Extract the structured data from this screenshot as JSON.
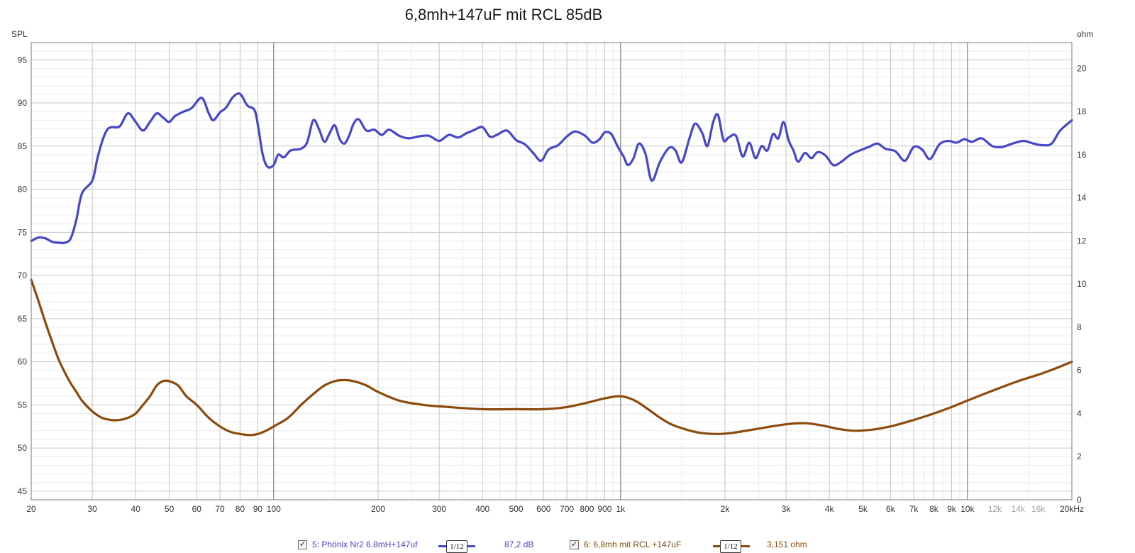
{
  "chart_data": {
    "type": "line",
    "title": "6,8mh+147uF mit RCL 85dB",
    "y_left_label": "SPL",
    "y_right_label": "ohm",
    "x_scale": "log",
    "xlim": [
      20,
      20000
    ],
    "ylim_left": [
      44,
      97
    ],
    "ylim_right": [
      0,
      21.2
    ],
    "grid": true,
    "x_ticks": [
      {
        "v": 20,
        "label": "20"
      },
      {
        "v": 30,
        "label": "30"
      },
      {
        "v": 40,
        "label": "40"
      },
      {
        "v": 50,
        "label": "50"
      },
      {
        "v": 60,
        "label": "60"
      },
      {
        "v": 70,
        "label": "70"
      },
      {
        "v": 80,
        "label": "80"
      },
      {
        "v": 90,
        "label": "90"
      },
      {
        "v": 100,
        "label": "100"
      },
      {
        "v": 200,
        "label": "200"
      },
      {
        "v": 300,
        "label": "300"
      },
      {
        "v": 400,
        "label": "400"
      },
      {
        "v": 500,
        "label": "500"
      },
      {
        "v": 600,
        "label": "600"
      },
      {
        "v": 700,
        "label": "700"
      },
      {
        "v": 800,
        "label": "800"
      },
      {
        "v": 900,
        "label": "900"
      },
      {
        "v": 1000,
        "label": "1k"
      },
      {
        "v": 2000,
        "label": "2k"
      },
      {
        "v": 3000,
        "label": "3k"
      },
      {
        "v": 4000,
        "label": "4k"
      },
      {
        "v": 5000,
        "label": "5k"
      },
      {
        "v": 6000,
        "label": "6k"
      },
      {
        "v": 7000,
        "label": "7k"
      },
      {
        "v": 8000,
        "label": "8k"
      },
      {
        "v": 9000,
        "label": "9k"
      },
      {
        "v": 10000,
        "label": "10k"
      },
      {
        "v": 12000,
        "label": "12k"
      },
      {
        "v": 14000,
        "label": "14k"
      },
      {
        "v": 16000,
        "label": "16k"
      },
      {
        "v": 20000,
        "label": "20kHz"
      }
    ],
    "y_left_ticks": [
      45,
      50,
      55,
      60,
      65,
      70,
      75,
      80,
      85,
      90,
      95
    ],
    "y_right_ticks": [
      0,
      2,
      4,
      6,
      8,
      10,
      12,
      14,
      16,
      18,
      20
    ],
    "series": [
      {
        "name": "5: Phönix Nr2 6.8mH+147uf",
        "axis": "left",
        "color": "#4646c8",
        "smoothing": "1/12",
        "readout": "87,2 dB",
        "points": [
          [
            20,
            74.0
          ],
          [
            21,
            74.4
          ],
          [
            22,
            74.3
          ],
          [
            23,
            73.9
          ],
          [
            24,
            73.8
          ],
          [
            25,
            73.8
          ],
          [
            26,
            74.3
          ],
          [
            27,
            76.5
          ],
          [
            28,
            79.5
          ],
          [
            30,
            81.0
          ],
          [
            31,
            83.5
          ],
          [
            32,
            85.5
          ],
          [
            33,
            86.8
          ],
          [
            34,
            87.2
          ],
          [
            36,
            87.3
          ],
          [
            38,
            88.8
          ],
          [
            40,
            87.8
          ],
          [
            42,
            86.8
          ],
          [
            44,
            87.8
          ],
          [
            46,
            88.8
          ],
          [
            48,
            88.3
          ],
          [
            50,
            87.8
          ],
          [
            52,
            88.5
          ],
          [
            55,
            89.0
          ],
          [
            58,
            89.4
          ],
          [
            62,
            90.6
          ],
          [
            65,
            88.8
          ],
          [
            67,
            88.0
          ],
          [
            70,
            88.9
          ],
          [
            73,
            89.5
          ],
          [
            76,
            90.6
          ],
          [
            79,
            91.1
          ],
          [
            81,
            90.8
          ],
          [
            84,
            89.7
          ],
          [
            88,
            89.2
          ],
          [
            90,
            87.5
          ],
          [
            93,
            84.0
          ],
          [
            96,
            82.6
          ],
          [
            100,
            82.8
          ],
          [
            103,
            84.0
          ],
          [
            107,
            83.7
          ],
          [
            112,
            84.5
          ],
          [
            120,
            84.7
          ],
          [
            125,
            85.5
          ],
          [
            130,
            88.0
          ],
          [
            135,
            87.0
          ],
          [
            140,
            85.5
          ],
          [
            145,
            86.5
          ],
          [
            150,
            87.4
          ],
          [
            155,
            85.8
          ],
          [
            160,
            85.3
          ],
          [
            165,
            86.2
          ],
          [
            170,
            87.6
          ],
          [
            176,
            88.1
          ],
          [
            185,
            86.8
          ],
          [
            195,
            86.9
          ],
          [
            205,
            86.3
          ],
          [
            215,
            86.9
          ],
          [
            230,
            86.2
          ],
          [
            245,
            85.9
          ],
          [
            260,
            86.1
          ],
          [
            280,
            86.2
          ],
          [
            300,
            85.6
          ],
          [
            320,
            86.3
          ],
          [
            340,
            86.0
          ],
          [
            360,
            86.5
          ],
          [
            380,
            86.9
          ],
          [
            400,
            87.2
          ],
          [
            420,
            86.1
          ],
          [
            440,
            86.3
          ],
          [
            470,
            86.8
          ],
          [
            500,
            85.7
          ],
          [
            530,
            85.2
          ],
          [
            560,
            84.2
          ],
          [
            590,
            83.3
          ],
          [
            620,
            84.6
          ],
          [
            660,
            85.1
          ],
          [
            700,
            86.1
          ],
          [
            740,
            86.7
          ],
          [
            790,
            86.2
          ],
          [
            830,
            85.4
          ],
          [
            870,
            85.8
          ],
          [
            900,
            86.6
          ],
          [
            940,
            86.4
          ],
          [
            980,
            85.0
          ],
          [
            1020,
            83.8
          ],
          [
            1050,
            82.8
          ],
          [
            1090,
            83.6
          ],
          [
            1130,
            85.3
          ],
          [
            1180,
            84.1
          ],
          [
            1230,
            81.0
          ],
          [
            1300,
            83.2
          ],
          [
            1380,
            84.8
          ],
          [
            1440,
            84.5
          ],
          [
            1500,
            83.1
          ],
          [
            1580,
            85.9
          ],
          [
            1640,
            87.6
          ],
          [
            1720,
            86.5
          ],
          [
            1780,
            85.0
          ],
          [
            1850,
            87.8
          ],
          [
            1910,
            88.6
          ],
          [
            1980,
            85.7
          ],
          [
            2050,
            86.0
          ],
          [
            2150,
            86.2
          ],
          [
            2250,
            83.8
          ],
          [
            2350,
            85.4
          ],
          [
            2450,
            83.6
          ],
          [
            2550,
            85.0
          ],
          [
            2650,
            84.5
          ],
          [
            2750,
            86.4
          ],
          [
            2850,
            85.9
          ],
          [
            2950,
            87.8
          ],
          [
            3050,
            85.7
          ],
          [
            3150,
            84.5
          ],
          [
            3250,
            83.2
          ],
          [
            3400,
            84.2
          ],
          [
            3550,
            83.6
          ],
          [
            3700,
            84.3
          ],
          [
            3900,
            83.9
          ],
          [
            4100,
            82.8
          ],
          [
            4300,
            83.1
          ],
          [
            4600,
            84.0
          ],
          [
            4900,
            84.5
          ],
          [
            5200,
            84.9
          ],
          [
            5500,
            85.3
          ],
          [
            5800,
            84.7
          ],
          [
            6200,
            84.4
          ],
          [
            6600,
            83.3
          ],
          [
            7000,
            84.9
          ],
          [
            7400,
            84.6
          ],
          [
            7800,
            83.5
          ],
          [
            8300,
            85.2
          ],
          [
            8800,
            85.6
          ],
          [
            9300,
            85.4
          ],
          [
            9800,
            85.8
          ],
          [
            10300,
            85.5
          ],
          [
            11000,
            85.9
          ],
          [
            11800,
            85.0
          ],
          [
            12600,
            84.9
          ],
          [
            13500,
            85.3
          ],
          [
            14500,
            85.6
          ],
          [
            15500,
            85.3
          ],
          [
            16500,
            85.1
          ],
          [
            17500,
            85.3
          ],
          [
            18500,
            86.8
          ],
          [
            20000,
            88.0
          ]
        ]
      },
      {
        "name": "6: 6,8mh mit RCL +147uF",
        "axis": "right",
        "color": "#8c4a0c",
        "smoothing": "1/12",
        "readout": "3,151 ohm",
        "points": [
          [
            20,
            10.2
          ],
          [
            21,
            9.2
          ],
          [
            22,
            8.2
          ],
          [
            23,
            7.3
          ],
          [
            24,
            6.5
          ],
          [
            25,
            5.9
          ],
          [
            26,
            5.4
          ],
          [
            27,
            5.0
          ],
          [
            28,
            4.6
          ],
          [
            30,
            4.1
          ],
          [
            32,
            3.8
          ],
          [
            34,
            3.7
          ],
          [
            36,
            3.7
          ],
          [
            38,
            3.8
          ],
          [
            40,
            4.0
          ],
          [
            42,
            4.4
          ],
          [
            44,
            4.8
          ],
          [
            46,
            5.3
          ],
          [
            48,
            5.5
          ],
          [
            50,
            5.5
          ],
          [
            53,
            5.3
          ],
          [
            56,
            4.8
          ],
          [
            60,
            4.4
          ],
          [
            65,
            3.8
          ],
          [
            70,
            3.4
          ],
          [
            75,
            3.15
          ],
          [
            80,
            3.05
          ],
          [
            85,
            3.0
          ],
          [
            90,
            3.05
          ],
          [
            95,
            3.2
          ],
          [
            100,
            3.4
          ],
          [
            110,
            3.8
          ],
          [
            120,
            4.4
          ],
          [
            130,
            4.9
          ],
          [
            140,
            5.3
          ],
          [
            150,
            5.5
          ],
          [
            160,
            5.55
          ],
          [
            170,
            5.5
          ],
          [
            185,
            5.3
          ],
          [
            200,
            5.0
          ],
          [
            230,
            4.6
          ],
          [
            270,
            4.4
          ],
          [
            320,
            4.3
          ],
          [
            400,
            4.2
          ],
          [
            500,
            4.2
          ],
          [
            600,
            4.2
          ],
          [
            700,
            4.3
          ],
          [
            800,
            4.5
          ],
          [
            900,
            4.7
          ],
          [
            1000,
            4.8
          ],
          [
            1100,
            4.6
          ],
          [
            1200,
            4.2
          ],
          [
            1300,
            3.8
          ],
          [
            1400,
            3.5
          ],
          [
            1550,
            3.25
          ],
          [
            1700,
            3.1
          ],
          [
            1900,
            3.05
          ],
          [
            2100,
            3.1
          ],
          [
            2500,
            3.3
          ],
          [
            3000,
            3.5
          ],
          [
            3400,
            3.55
          ],
          [
            3800,
            3.45
          ],
          [
            4200,
            3.3
          ],
          [
            4700,
            3.2
          ],
          [
            5300,
            3.25
          ],
          [
            6000,
            3.4
          ],
          [
            7000,
            3.7
          ],
          [
            8000,
            4.0
          ],
          [
            9000,
            4.3
          ],
          [
            10000,
            4.6
          ],
          [
            12000,
            5.1
          ],
          [
            14000,
            5.5
          ],
          [
            16000,
            5.8
          ],
          [
            18000,
            6.1
          ],
          [
            20000,
            6.4
          ]
        ]
      }
    ]
  },
  "legend": {
    "series1_checkbox": "✓",
    "series1_label": "5: Phönix Nr2 6.8mH+147uf",
    "series1_smoothing": "1/12",
    "series1_value": "87,2 dB",
    "series2_checkbox": "✓",
    "series2_label": "6: 6,8mh mit RCL +147uF",
    "series2_smoothing": "1/12",
    "series2_value": "3,151 ohm"
  }
}
